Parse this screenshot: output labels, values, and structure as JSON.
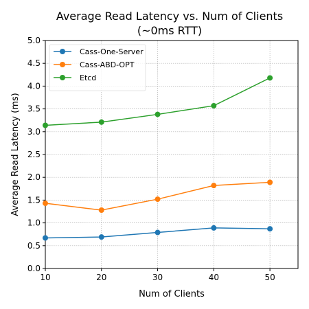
{
  "chart_data": {
    "type": "line",
    "title_line1": "Average Read Latency vs. Num of Clients",
    "title_line2": "(~0ms RTT)",
    "xlabel": "Num of Clients",
    "ylabel": "Average Read Latency (ms)",
    "x": [
      10,
      20,
      30,
      40,
      50
    ],
    "xlim": [
      10,
      55
    ],
    "ylim": [
      0,
      5
    ],
    "xticks": [
      "10",
      "20",
      "30",
      "40",
      "50"
    ],
    "yticks": [
      "0.0",
      "0.5",
      "1.0",
      "1.5",
      "2.0",
      "2.5",
      "3.0",
      "3.5",
      "4.0",
      "4.5",
      "5.0"
    ],
    "grid": true,
    "legend_position": "upper-left",
    "series": [
      {
        "name": "Cass-One-Server",
        "color": "#1f77b4",
        "values": [
          0.67,
          0.69,
          0.79,
          0.89,
          0.87
        ]
      },
      {
        "name": "Cass-ABD-OPT",
        "color": "#ff7f0e",
        "values": [
          1.43,
          1.28,
          1.52,
          1.82,
          1.89
        ]
      },
      {
        "name": "Etcd",
        "color": "#2ca02c",
        "values": [
          3.14,
          3.21,
          3.38,
          3.57,
          4.18
        ]
      }
    ]
  }
}
